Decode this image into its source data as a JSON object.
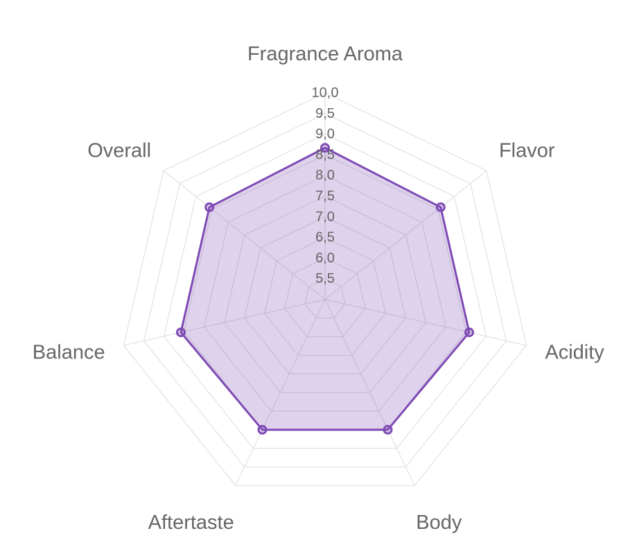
{
  "chart_data": {
    "type": "radar",
    "title": "",
    "axes": [
      "Fragrance Aroma",
      "Flavor",
      "Acidity",
      "Body",
      "Aftertaste",
      "Balance",
      "Overall"
    ],
    "r_range": [
      5.0,
      10.0
    ],
    "ticks": [
      "5,5",
      "6,0",
      "6,5",
      "7,0",
      "7,5",
      "8,0",
      "8,5",
      "9,0",
      "9,5",
      "10,0"
    ],
    "tick_values": [
      5.5,
      6.0,
      6.5,
      7.0,
      7.5,
      8.0,
      8.5,
      9.0,
      9.5,
      10.0
    ],
    "grid": true,
    "series": [
      {
        "values": [
          8.67,
          8.58,
          8.58,
          8.5,
          8.5,
          8.58,
          8.58
        ],
        "color": "#7e4bb5",
        "fill": "#7e4bb5",
        "fill_opacity": 0.25
      }
    ]
  }
}
